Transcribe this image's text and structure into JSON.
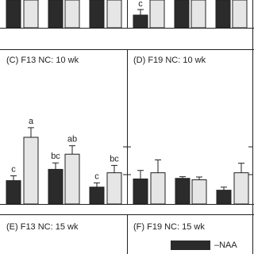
{
  "chart_data": [
    {
      "type": "bar",
      "title": "(C) F13 NC: 10 wk",
      "categories": [
        null,
        null,
        null
      ],
      "ylim": [
        0,
        5.5
      ],
      "series": [
        {
          "color": "#2b2b2b",
          "values": [
            0.83,
            1.23,
            0.6
          ],
          "errors": [
            0.17,
            0.23,
            0.15
          ],
          "letters": [
            "c",
            "bc",
            "c"
          ]
        },
        {
          "color": "#e6e6e6",
          "values": [
            2.37,
            1.77,
            1.11
          ],
          "errors": [
            0.34,
            0.3,
            0.26
          ],
          "letters": [
            "a",
            "ab",
            "bc"
          ]
        }
      ]
    },
    {
      "type": "bar",
      "title": "(D) F19 NC: 10 wk",
      "categories": [
        null,
        null,
        null
      ],
      "ylim": [
        0,
        5.5
      ],
      "series": [
        {
          "color": "#2b2b2b",
          "values": [
            0.89,
            0.91,
            0.49
          ],
          "errors": [
            0.3,
            0.06,
            0.11
          ]
        },
        {
          "color": "#e6e6e6",
          "values": [
            1.11,
            0.86,
            1.11
          ],
          "errors": [
            0.46,
            0.1,
            0.34
          ]
        }
      ]
    },
    {
      "type": "bar",
      "title": "(E) F13 NC: 15 wk"
    },
    {
      "type": "bar",
      "title": "(F) F19 NC: 15 wk",
      "legend": [
        {
          "name": "–NAA",
          "color": "#2b2b2b"
        }
      ]
    }
  ],
  "fragments": {
    "panel_b_letter": "c"
  }
}
